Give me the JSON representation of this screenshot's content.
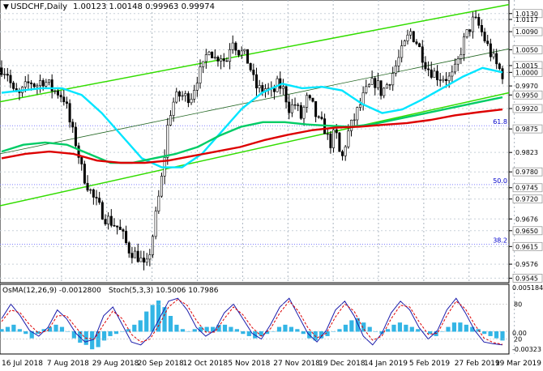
{
  "chart_data": [
    {
      "type": "candlestick",
      "panel": "main",
      "title": "USDCHF,Daily",
      "ohlc_header": "1.00123 1.00148 0.99963 0.99974",
      "x_labels": [
        "16 Jul 2018",
        "7 Aug 2018",
        "29 Aug 2018",
        "20 Sep 2018",
        "12 Oct 2018",
        "5 Nov 2018",
        "27 Nov 2018",
        "19 Dec 2018",
        "14 Jan 2019",
        "5 Feb 2019",
        "27 Feb 2019",
        "19 Mar 2019"
      ],
      "ylim": [
        0.9535,
        1.016
      ],
      "y_ticks": [
        {
          "value": "1.0130",
          "boxed": true
        },
        {
          "value": "1.0117",
          "boxed": false
        },
        {
          "value": "1.0090",
          "boxed": true
        },
        {
          "value": "1.0050",
          "boxed": true
        },
        {
          "value": "1.0015",
          "boxed": true
        },
        {
          "value": "1.0000",
          "boxed": true
        },
        {
          "value": "0.9970",
          "boxed": false
        },
        {
          "value": "0.9950",
          "boxed": true
        },
        {
          "value": "0.9920",
          "boxed": true
        },
        {
          "value": "0.9875",
          "boxed": true
        },
        {
          "value": "0.9823",
          "boxed": false
        },
        {
          "value": "0.9780",
          "boxed": true
        },
        {
          "value": "0.9745",
          "boxed": true
        },
        {
          "value": "0.9720",
          "boxed": true
        },
        {
          "value": "0.9676",
          "boxed": false
        },
        {
          "value": "0.9650",
          "boxed": true
        },
        {
          "value": "0.9615",
          "boxed": true
        },
        {
          "value": "0.9576",
          "boxed": false
        },
        {
          "value": "0.9545",
          "boxed": true
        }
      ],
      "fib_levels": [
        {
          "label": "61.8",
          "value": 0.9882
        },
        {
          "label": "50.0",
          "value": 0.9752
        },
        {
          "label": "38.2",
          "value": 0.962
        }
      ],
      "close_path": [
        1.001,
        1.0,
        0.9955,
        0.9948,
        0.9965,
        0.998,
        0.997,
        0.9985,
        0.9975,
        0.996,
        0.9955,
        0.994,
        0.988,
        0.984,
        0.978,
        0.975,
        0.972,
        0.97,
        0.968,
        0.967,
        0.966,
        0.964,
        0.961,
        0.96,
        0.959,
        0.956,
        0.962,
        0.97,
        0.978,
        0.99,
        0.994,
        0.995,
        0.9945,
        0.995,
        0.999,
        1.001,
        1.006,
        1.003,
        1.004,
        1.002,
        1.008,
        1.005,
        1.004,
        1.002,
        0.997,
        0.996,
        0.9965,
        0.995,
        0.9975,
        0.996,
        0.992,
        0.993,
        0.99,
        0.994,
        0.9925,
        0.989,
        0.988,
        0.984,
        0.987,
        0.98,
        0.986,
        0.989,
        0.992,
        0.995,
        0.997,
        0.998,
        0.9955,
        0.9975,
        1.0,
        1.003,
        1.006,
        1.009,
        1.007,
        1.004,
        1.001,
        1.0,
        0.999,
        0.999,
        0.9985,
        1.001,
        1.006,
        1.009,
        1.0117,
        1.01,
        1.007,
        1.004,
        1.0015,
        0.9997
      ],
      "series": [
        {
          "name": "",
          "color": "#00e5ff",
          "values": [
            0.9955,
            0.996,
            0.9965,
            0.9965,
            0.995,
            0.991,
            0.986,
            0.981,
            0.979,
            0.979,
            0.982,
            0.987,
            0.992,
            0.9955,
            0.9975,
            0.9965,
            0.9968,
            0.996,
            0.993,
            0.991,
            0.9918,
            0.994,
            0.9965,
            0.999,
            1.001,
            1.0
          ]
        },
        {
          "name": "",
          "color": "#00cc66",
          "values": [
            0.9825,
            0.984,
            0.9845,
            0.984,
            0.982,
            0.98,
            0.98,
            0.981,
            0.982,
            0.9835,
            0.986,
            0.988,
            0.989,
            0.989,
            0.9885,
            0.9882,
            0.988,
            0.9885,
            0.9895,
            0.9905,
            0.9915,
            0.9925,
            0.9935,
            0.9945
          ]
        },
        {
          "name": "",
          "color": "#dd0000",
          "values": [
            0.981,
            0.982,
            0.9825,
            0.982,
            0.9805,
            0.98,
            0.98,
            0.9805,
            0.9815,
            0.9825,
            0.9835,
            0.985,
            0.9862,
            0.9872,
            0.9878,
            0.988,
            0.9884,
            0.9888,
            0.9895,
            0.9905,
            0.9912,
            0.9918
          ]
        }
      ],
      "channel_lines_color": "#33dd00"
    },
    {
      "type": "bar",
      "panel": "oscillator",
      "title": "OsMA(12,26,9) -0.0012800",
      "overlay_label": "Stoch(5,3,3) 10.5006 10.7986",
      "y_ticks": [
        "0.0051846",
        "0.00",
        "-0.00323"
      ],
      "levels": [
        "80",
        "20"
      ],
      "osma_values": [
        1,
        2,
        3,
        1,
        -1,
        -3,
        -1,
        1,
        2,
        3,
        2,
        0,
        -3,
        -5,
        -6,
        -8,
        -7,
        -4,
        -2,
        -1,
        0,
        1,
        3,
        5,
        9,
        12,
        14,
        11,
        7,
        3,
        1,
        0,
        1,
        2,
        2,
        2,
        3,
        3,
        2,
        1,
        -1,
        -2,
        -3,
        -2,
        -1,
        0,
        2,
        3,
        2,
        1,
        -1,
        -3,
        -4,
        -3,
        -2,
        0,
        1,
        3,
        5,
        6,
        4,
        2,
        0,
        -1,
        1,
        3,
        4,
        3,
        2,
        1,
        0,
        -1,
        -2,
        0,
        2,
        4,
        4,
        3,
        2,
        1,
        -1,
        -2,
        -3,
        -4
      ],
      "stoch_main": [
        55,
        80,
        60,
        35,
        25,
        40,
        70,
        55,
        30,
        15,
        20,
        60,
        75,
        45,
        15,
        10,
        25,
        55,
        85,
        90,
        70,
        40,
        25,
        35,
        65,
        80,
        55,
        30,
        20,
        45,
        75,
        90,
        60,
        30,
        15,
        35,
        70,
        85,
        60,
        25,
        10,
        30,
        65,
        85,
        70,
        40,
        20,
        35,
        70,
        90,
        65,
        35,
        15,
        12,
        10
      ],
      "stoch_signal": [
        50,
        70,
        65,
        45,
        30,
        35,
        60,
        60,
        40,
        22,
        20,
        45,
        68,
        55,
        28,
        15,
        20,
        45,
        75,
        88,
        78,
        52,
        32,
        32,
        55,
        75,
        62,
        40,
        25,
        38,
        65,
        85,
        68,
        40,
        22,
        30,
        58,
        80,
        68,
        38,
        18,
        25,
        55,
        78,
        75,
        50,
        28,
        30,
        60,
        85,
        72,
        45,
        22,
        14,
        11
      ]
    }
  ]
}
